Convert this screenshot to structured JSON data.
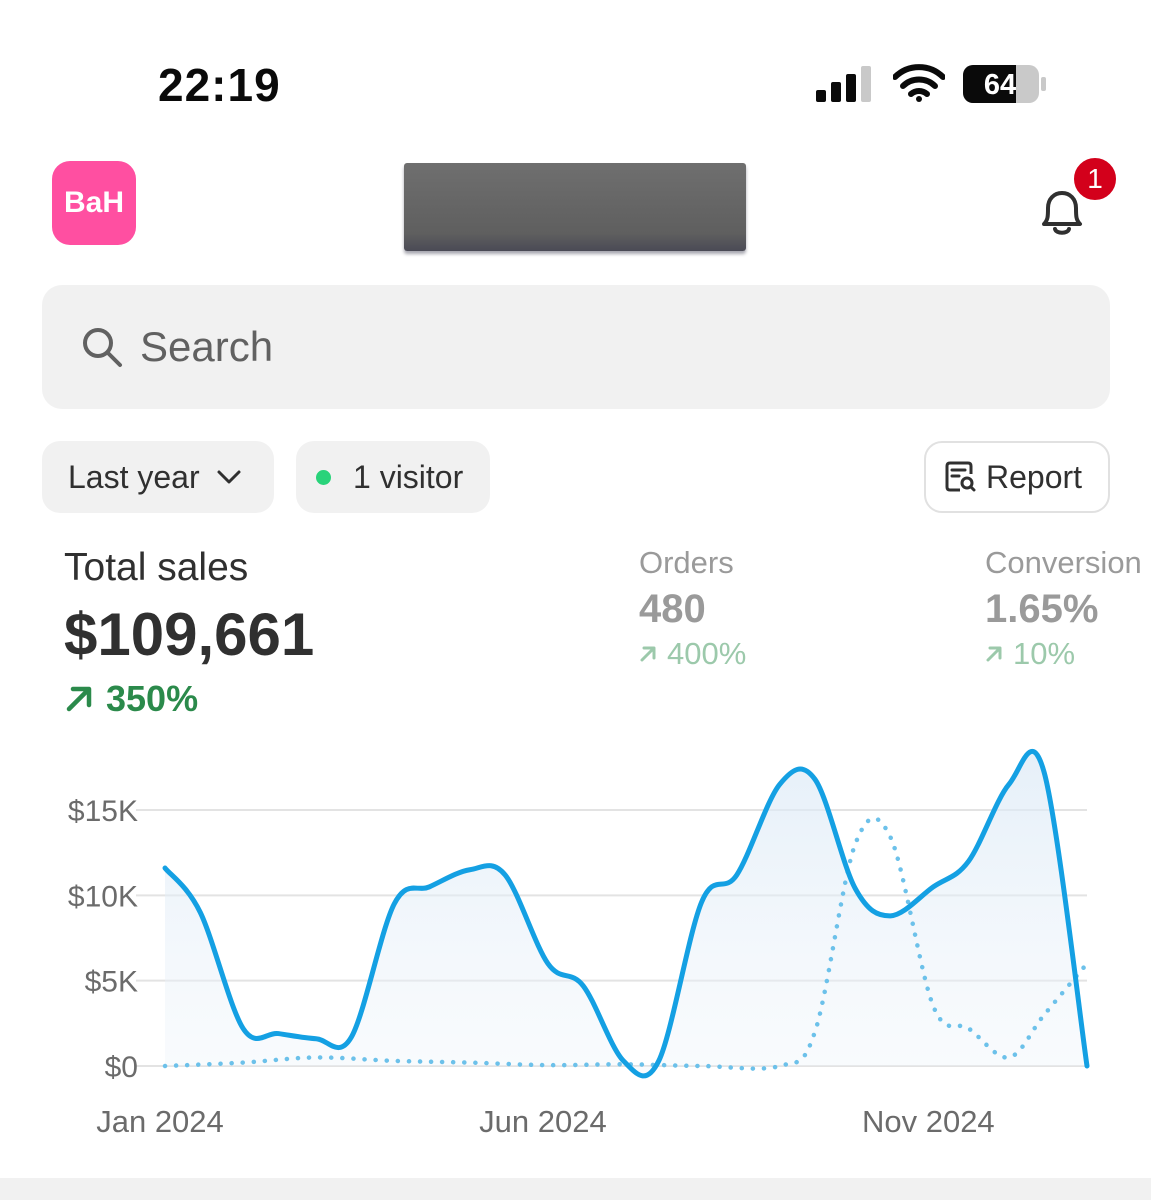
{
  "status_bar": {
    "time": "22:19",
    "battery": "64"
  },
  "header": {
    "avatar_initials": "BaH",
    "notification_count": "1"
  },
  "search": {
    "placeholder": "Search"
  },
  "filters": {
    "period": "Last year",
    "visitors": "1 visitor",
    "report_label": "Report"
  },
  "metrics": {
    "total_sales": {
      "title": "Total sales",
      "value": "$109,661",
      "change": "350%"
    },
    "orders": {
      "title": "Orders",
      "value": "480",
      "change": "400%"
    },
    "conversion": {
      "title": "Conversion",
      "value": "1.65%",
      "change": "10%"
    }
  },
  "colors": {
    "accent": "#14a0e3",
    "positive": "#2b8a4b",
    "avatar": "#ff4fa1",
    "badge": "#d3001b"
  },
  "chart_data": {
    "type": "area",
    "x_labels": [
      "Jan 2024",
      "Jun 2024",
      "Nov 2024"
    ],
    "y_ticks": [
      "$0",
      "$5K",
      "$10K",
      "$15K"
    ],
    "ylim": [
      0,
      15000
    ],
    "grid": true,
    "series": [
      {
        "style": "solid",
        "x": [
          "2024-01-01",
          "2024-01-15",
          "2024-02-01",
          "2024-02-15",
          "2024-03-01",
          "2024-03-15",
          "2024-04-01",
          "2024-04-15",
          "2024-05-01",
          "2024-05-15",
          "2024-06-01",
          "2024-06-15",
          "2024-07-01",
          "2024-07-15",
          "2024-08-01",
          "2024-08-15",
          "2024-09-01",
          "2024-09-15",
          "2024-10-01",
          "2024-10-15",
          "2024-11-01",
          "2024-11-15",
          "2024-12-01",
          "2024-12-15",
          "2025-01-01"
        ],
        "values": [
          11600,
          9000,
          2200,
          1900,
          1600,
          1700,
          9500,
          10500,
          11500,
          11200,
          6000,
          4700,
          300,
          300,
          9600,
          11200,
          16500,
          16800,
          10400,
          8800,
          10500,
          12000,
          16500,
          17200,
          0
        ]
      },
      {
        "style": "dotted",
        "x": [
          "2024-01-01",
          "2024-02-01",
          "2024-03-01",
          "2024-04-01",
          "2024-05-01",
          "2024-06-01",
          "2024-07-01",
          "2024-08-01",
          "2024-09-01",
          "2024-09-15",
          "2024-10-01",
          "2024-10-15",
          "2024-11-01",
          "2024-11-15",
          "2024-12-01",
          "2024-12-15",
          "2025-01-01"
        ],
        "values": [
          0,
          200,
          500,
          300,
          200,
          50,
          100,
          0,
          0,
          2000,
          13000,
          13400,
          3500,
          2200,
          500,
          3000,
          6000
        ]
      }
    ]
  }
}
